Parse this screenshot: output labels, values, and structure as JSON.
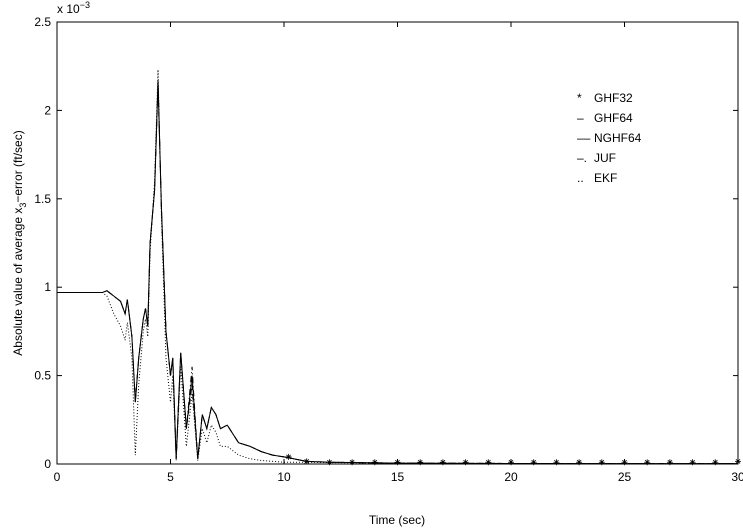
{
  "chart_data": {
    "type": "line",
    "xlabel": "Time (sec)",
    "ylabel": [
      "Absolute value of average x",
      "3",
      "−error (ft/sec)"
    ],
    "y_multiplier": [
      "x 10",
      "−3"
    ],
    "xlim": [
      0,
      30
    ],
    "xticks": [
      0,
      5,
      10,
      15,
      20,
      25,
      30
    ],
    "ylim": [
      0,
      2.5
    ],
    "yticks": [
      0,
      0.5,
      1,
      1.5,
      2,
      2.5
    ],
    "legend_position": "upper right",
    "x": [
      0,
      1,
      2,
      2.2,
      2.5,
      2.8,
      3.0,
      3.1,
      3.3,
      3.45,
      3.6,
      3.8,
      3.9,
      4.0,
      4.1,
      4.3,
      4.45,
      4.6,
      4.8,
      5.0,
      5.1,
      5.25,
      5.45,
      5.7,
      5.95,
      6.2,
      6.4,
      6.6,
      6.8,
      7.0,
      7.2,
      7.5,
      8,
      8.5,
      9,
      9.5,
      10,
      11,
      12,
      15,
      20,
      25,
      30
    ],
    "series": [
      {
        "name": "GHF32",
        "legend_symbol": "*",
        "style": "star",
        "color": "#000000",
        "x": [
          10.2,
          11,
          12,
          13,
          14,
          15,
          16,
          17,
          18,
          19,
          20,
          21,
          22,
          23,
          24,
          25,
          26,
          27,
          28,
          29,
          30
        ],
        "values": [
          0.04,
          0.015,
          0.01,
          0.01,
          0.01,
          0.01,
          0.01,
          0.01,
          0.01,
          0.01,
          0.01,
          0.01,
          0.01,
          0.01,
          0.01,
          0.01,
          0.01,
          0.01,
          0.01,
          0.01,
          0.015
        ]
      },
      {
        "name": "GHF64",
        "legend_symbol": "–",
        "style": "solid",
        "color": "#000000",
        "values": [
          0.97,
          0.97,
          0.97,
          0.98,
          0.95,
          0.92,
          0.85,
          0.93,
          0.72,
          0.35,
          0.6,
          0.82,
          0.88,
          0.78,
          1.25,
          1.55,
          2.17,
          1.45,
          0.75,
          0.5,
          0.6,
          0.03,
          0.63,
          0.2,
          0.5,
          0.03,
          0.28,
          0.2,
          0.32,
          0.28,
          0.2,
          0.22,
          0.12,
          0.1,
          0.07,
          0.05,
          0.04,
          0.015,
          0.01,
          0.005,
          0.003,
          0.002,
          0.002
        ]
      },
      {
        "name": "NGHF64",
        "legend_symbol": "––",
        "style": "dashed",
        "color": "#000000",
        "values": [
          0.97,
          0.97,
          0.97,
          0.98,
          0.95,
          0.92,
          0.85,
          0.93,
          0.72,
          0.35,
          0.6,
          0.82,
          0.88,
          0.78,
          1.25,
          1.55,
          2.15,
          1.45,
          0.75,
          0.5,
          0.6,
          0.03,
          0.63,
          0.2,
          0.45,
          0.03,
          0.28,
          0.2,
          0.32,
          0.28,
          0.2,
          0.22,
          0.12,
          0.1,
          0.07,
          0.05,
          0.04,
          0.015,
          0.01,
          0.005,
          0.003,
          0.002,
          0.002
        ]
      },
      {
        "name": "JUF",
        "legend_symbol": "–.",
        "style": "dashdot",
        "color": "#000000",
        "values": [
          0.97,
          0.97,
          0.97,
          0.98,
          0.95,
          0.92,
          0.85,
          0.93,
          0.72,
          0.35,
          0.6,
          0.82,
          0.88,
          0.78,
          1.25,
          1.55,
          2.16,
          1.45,
          0.75,
          0.5,
          0.6,
          0.03,
          0.63,
          0.2,
          0.55,
          0.03,
          0.28,
          0.2,
          0.32,
          0.28,
          0.2,
          0.22,
          0.12,
          0.1,
          0.07,
          0.05,
          0.04,
          0.015,
          0.01,
          0.005,
          0.003,
          0.002,
          0.002
        ]
      },
      {
        "name": "EKF",
        "legend_symbol": "..",
        "style": "dotted",
        "color": "#000000",
        "values": [
          0.97,
          0.97,
          0.97,
          0.95,
          0.85,
          0.78,
          0.7,
          0.8,
          0.6,
          0.05,
          0.45,
          0.75,
          0.82,
          0.72,
          1.2,
          1.6,
          2.23,
          1.4,
          0.6,
          0.35,
          0.5,
          0.02,
          0.55,
          0.1,
          0.4,
          0.02,
          0.2,
          0.12,
          0.22,
          0.18,
          0.1,
          0.1,
          0.05,
          0.03,
          0.02,
          0.015,
          0.01,
          0.01,
          0.008,
          0.005,
          0.003,
          0.002,
          0.002
        ]
      }
    ]
  }
}
